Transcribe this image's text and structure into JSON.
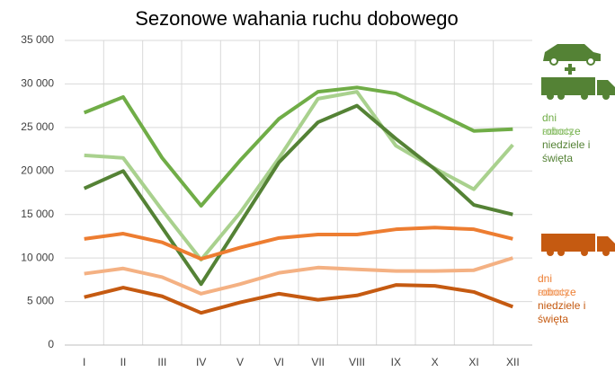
{
  "chart_data": {
    "type": "line",
    "title": "Sezonowe wahania ruchu dobowego",
    "categories": [
      "I",
      "II",
      "III",
      "IV",
      "V",
      "VI",
      "VII",
      "VIII",
      "IX",
      "X",
      "XI",
      "XII"
    ],
    "ylim": [
      0,
      35000
    ],
    "yticks": [
      {
        "value": 0,
        "label": "0"
      },
      {
        "value": 5000,
        "label": "5 000"
      },
      {
        "value": 10000,
        "label": "10 000"
      },
      {
        "value": 15000,
        "label": "15 000"
      },
      {
        "value": 20000,
        "label": "20 000"
      },
      {
        "value": 25000,
        "label": "25 000"
      },
      {
        "value": 30000,
        "label": "30 000"
      },
      {
        "value": 35000,
        "label": "35 000"
      }
    ],
    "grid": true,
    "series": [
      {
        "name": "dni robocze",
        "color": "#70ad47",
        "values": [
          26700,
          28500,
          21500,
          16000,
          21200,
          26000,
          29100,
          29600,
          28900,
          26800,
          24600,
          24800
        ]
      },
      {
        "name": "soboty",
        "color": "#a9d18e",
        "values": [
          21800,
          21500,
          15500,
          9800,
          15200,
          21500,
          28300,
          29100,
          22900,
          20300,
          17900,
          23000
        ]
      },
      {
        "name": "niedziele i święta",
        "color": "#548235",
        "values": [
          18000,
          20000,
          13500,
          7000,
          14000,
          21000,
          25600,
          27500,
          23700,
          20200,
          16100,
          15000
        ]
      },
      {
        "name": "dni robocze",
        "color": "#ed7d31",
        "values": [
          12200,
          12800,
          11800,
          9900,
          11200,
          12300,
          12700,
          12700,
          13300,
          13500,
          13300,
          12200
        ]
      },
      {
        "name": "soboty",
        "color": "#f4b183",
        "values": [
          8200,
          8800,
          7800,
          5900,
          7000,
          8300,
          8900,
          8700,
          8500,
          8500,
          8600,
          10000
        ]
      },
      {
        "name": "niedziele i święta",
        "color": "#c55a11",
        "values": [
          5500,
          6600,
          5600,
          3700,
          4900,
          5900,
          5200,
          5700,
          6900,
          6800,
          6100,
          4400
        ]
      }
    ]
  }
}
